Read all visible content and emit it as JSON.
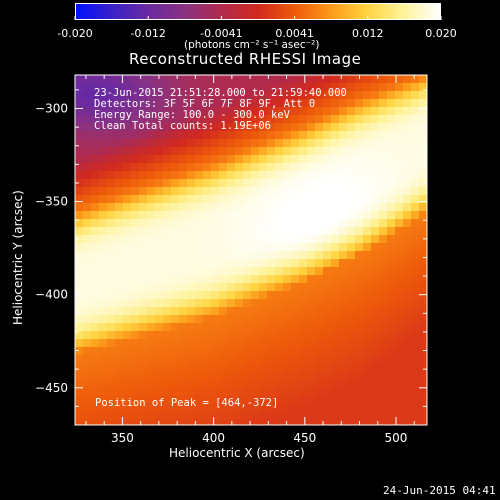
{
  "colorbar": {
    "ticks": [
      "-0.020",
      "-0.012",
      "-0.0041",
      "0.0041",
      "0.012",
      "0.020"
    ],
    "unit_label": "(photons cm⁻² s⁻¹ asec⁻²)",
    "colors": [
      "#0010ff",
      "#3a22c8",
      "#6a2aa0",
      "#8a3282",
      "#b02a4c",
      "#d22a1e",
      "#ee5a0a",
      "#fd9a1a",
      "#ffd440",
      "#fff39a",
      "#ffffff"
    ]
  },
  "title": "Reconstructed RHESSI Image",
  "info": {
    "time_range": "23-Jun-2015 21:51:28.000 to 21:59:40.000",
    "detectors": "Detectors: 3F 5F 6F 7F 8F 9F, Att 0",
    "energy": "Energy Range: 100.0 - 300.0 keV",
    "method": "Clean     Total counts: 1.19E+06"
  },
  "peak_label": "Position of Peak = [464,-372]",
  "timestamp": "24-Jun-2015 04:41",
  "chart_data": {
    "type": "heatmap",
    "title": "Reconstructed RHESSI Image",
    "xlabel": "Heliocentric X (arcsec)",
    "ylabel": "Heliocentric Y (arcsec)",
    "xlim": [
      324,
      517
    ],
    "ylim": [
      -470,
      -282
    ],
    "x_ticks": [
      350,
      400,
      450,
      500
    ],
    "y_ticks": [
      -300,
      -350,
      -400,
      -450
    ],
    "peak": [
      464,
      -372
    ],
    "colorbar_range": [
      -0.02,
      0.02
    ],
    "colormap": "blue-purple-red-yellow-white",
    "description_values": {
      "arc_inner_edge": [
        [
          324,
          -356
        ],
        [
          350,
          -347
        ],
        [
          400,
          -330
        ],
        [
          450,
          -310
        ],
        [
          480,
          -296
        ],
        [
          517,
          -282
        ]
      ],
      "arc_outer_edge": [
        [
          324,
          -432
        ],
        [
          350,
          -425
        ],
        [
          400,
          -412
        ],
        [
          450,
          -392
        ],
        [
          480,
          -378
        ],
        [
          517,
          -356
        ]
      ]
    }
  }
}
